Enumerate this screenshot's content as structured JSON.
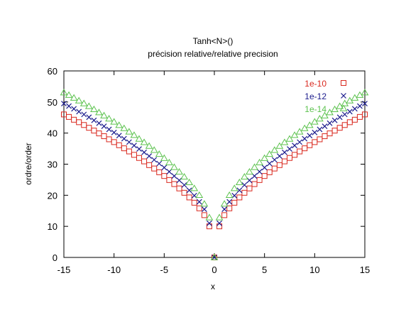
{
  "chart_data": {
    "type": "scatter",
    "title": "Tanh<N>()",
    "subtitle": "précision relative/relative precision",
    "xlabel": "x",
    "ylabel": "ordre/order",
    "xlim": [
      -15,
      15
    ],
    "ylim": [
      0,
      60
    ],
    "xticks": [
      -15,
      -10,
      -5,
      0,
      5,
      10,
      15
    ],
    "yticks": [
      0,
      10,
      20,
      30,
      40,
      50,
      60
    ],
    "grid": false,
    "legend_position": "top-right",
    "series": [
      {
        "name": "1e-10",
        "marker": "square",
        "color": "#d9281e",
        "points": [
          [
            -15,
            46
          ],
          [
            -14.5,
            45.2
          ],
          [
            -14,
            44.3
          ],
          [
            -13.5,
            43.5
          ],
          [
            -13,
            42.6
          ],
          [
            -12.5,
            41.7
          ],
          [
            -12,
            40.8
          ],
          [
            -11.5,
            39.9
          ],
          [
            -11,
            39
          ],
          [
            -10.5,
            38
          ],
          [
            -10,
            37.1
          ],
          [
            -9.5,
            36.1
          ],
          [
            -9,
            35.1
          ],
          [
            -8.5,
            34.1
          ],
          [
            -8,
            33
          ],
          [
            -7.5,
            32
          ],
          [
            -7,
            30.9
          ],
          [
            -6.5,
            29.7
          ],
          [
            -6,
            28.6
          ],
          [
            -5.5,
            27.4
          ],
          [
            -5,
            26.2
          ],
          [
            -4.5,
            24.9
          ],
          [
            -4,
            23.6
          ],
          [
            -3.5,
            22.2
          ],
          [
            -3,
            20.8
          ],
          [
            -2.5,
            19.3
          ],
          [
            -2,
            17.6
          ],
          [
            -1.5,
            15.8
          ],
          [
            -1,
            13.6
          ],
          [
            -0.5,
            10
          ],
          [
            0,
            0
          ],
          [
            0.5,
            10
          ],
          [
            1,
            13.6
          ],
          [
            1.5,
            15.8
          ],
          [
            2,
            17.6
          ],
          [
            2.5,
            19.3
          ],
          [
            3,
            20.8
          ],
          [
            3.5,
            22.2
          ],
          [
            4,
            23.6
          ],
          [
            4.5,
            24.9
          ],
          [
            5,
            26.2
          ],
          [
            5.5,
            27.4
          ],
          [
            6,
            28.6
          ],
          [
            6.5,
            29.7
          ],
          [
            7,
            30.9
          ],
          [
            7.5,
            32
          ],
          [
            8,
            33
          ],
          [
            8.5,
            34.1
          ],
          [
            9,
            35.1
          ],
          [
            9.5,
            36.1
          ],
          [
            10,
            37.1
          ],
          [
            10.5,
            38
          ],
          [
            11,
            39
          ],
          [
            11.5,
            39.9
          ],
          [
            12,
            40.8
          ],
          [
            12.5,
            41.7
          ],
          [
            13,
            42.6
          ],
          [
            13.5,
            43.5
          ],
          [
            14,
            44.3
          ],
          [
            14.5,
            45.2
          ],
          [
            15,
            46
          ]
        ]
      },
      {
        "name": "1e-12",
        "marker": "cross",
        "color": "#1a1a8c",
        "points": [
          [
            -15,
            49.5
          ],
          [
            -14.5,
            48.7
          ],
          [
            -14,
            47.8
          ],
          [
            -13.5,
            46.9
          ],
          [
            -13,
            46
          ],
          [
            -12.5,
            45.1
          ],
          [
            -12,
            44.1
          ],
          [
            -11.5,
            43.2
          ],
          [
            -11,
            42.2
          ],
          [
            -10.5,
            41.2
          ],
          [
            -10,
            40.2
          ],
          [
            -9.5,
            39.2
          ],
          [
            -9,
            38.2
          ],
          [
            -8.5,
            37.1
          ],
          [
            -8,
            36
          ],
          [
            -7.5,
            34.9
          ],
          [
            -7,
            33.8
          ],
          [
            -6.5,
            32.6
          ],
          [
            -6,
            31.4
          ],
          [
            -5.5,
            30.2
          ],
          [
            -5,
            28.9
          ],
          [
            -4.5,
            27.6
          ],
          [
            -4,
            26.2
          ],
          [
            -3.5,
            24.8
          ],
          [
            -3,
            23.3
          ],
          [
            -2.5,
            21.6
          ],
          [
            -2,
            19.9
          ],
          [
            -1.5,
            17.9
          ],
          [
            -1,
            15.5
          ],
          [
            -0.5,
            11
          ],
          [
            0,
            0
          ],
          [
            0.5,
            11
          ],
          [
            1,
            15.5
          ],
          [
            1.5,
            17.9
          ],
          [
            2,
            19.9
          ],
          [
            2.5,
            21.6
          ],
          [
            3,
            23.3
          ],
          [
            3.5,
            24.8
          ],
          [
            4,
            26.2
          ],
          [
            4.5,
            27.6
          ],
          [
            5,
            28.9
          ],
          [
            5.5,
            30.2
          ],
          [
            6,
            31.4
          ],
          [
            6.5,
            32.6
          ],
          [
            7,
            33.8
          ],
          [
            7.5,
            34.9
          ],
          [
            8,
            36
          ],
          [
            8.5,
            37.1
          ],
          [
            9,
            38.2
          ],
          [
            9.5,
            39.2
          ],
          [
            10,
            40.2
          ],
          [
            10.5,
            41.2
          ],
          [
            11,
            42.2
          ],
          [
            11.5,
            43.2
          ],
          [
            12,
            44.1
          ],
          [
            12.5,
            45.1
          ],
          [
            13,
            46
          ],
          [
            13.5,
            46.9
          ],
          [
            14,
            47.8
          ],
          [
            14.5,
            48.7
          ],
          [
            15,
            49.5
          ]
        ]
      },
      {
        "name": "1e-14",
        "marker": "triangle",
        "color": "#5cc24e",
        "points": [
          [
            -15,
            53
          ],
          [
            -14.5,
            52.2
          ],
          [
            -14,
            51.3
          ],
          [
            -13.5,
            50.4
          ],
          [
            -13,
            49.5
          ],
          [
            -12.5,
            48.6
          ],
          [
            -12,
            47.6
          ],
          [
            -11.5,
            46.6
          ],
          [
            -11,
            45.6
          ],
          [
            -10.5,
            44.6
          ],
          [
            -10,
            43.6
          ],
          [
            -9.5,
            42.5
          ],
          [
            -9,
            41.5
          ],
          [
            -8.5,
            40.4
          ],
          [
            -8,
            39.3
          ],
          [
            -7.5,
            38.1
          ],
          [
            -7,
            37
          ],
          [
            -6.5,
            35.8
          ],
          [
            -6,
            34.5
          ],
          [
            -5.5,
            33.2
          ],
          [
            -5,
            31.9
          ],
          [
            -4.5,
            30.5
          ],
          [
            -4,
            29
          ],
          [
            -3.5,
            27.5
          ],
          [
            -3,
            25.9
          ],
          [
            -2.5,
            24.1
          ],
          [
            -2,
            22.2
          ],
          [
            -1.5,
            20
          ],
          [
            -1,
            17.2
          ],
          [
            -0.5,
            12.8
          ],
          [
            0,
            0
          ],
          [
            0.5,
            12.8
          ],
          [
            1,
            17.2
          ],
          [
            1.5,
            20
          ],
          [
            2,
            22.2
          ],
          [
            2.5,
            24.1
          ],
          [
            3,
            25.9
          ],
          [
            3.5,
            27.5
          ],
          [
            4,
            29
          ],
          [
            4.5,
            30.5
          ],
          [
            5,
            31.9
          ],
          [
            5.5,
            33.2
          ],
          [
            6,
            34.5
          ],
          [
            6.5,
            35.8
          ],
          [
            7,
            37
          ],
          [
            7.5,
            38.1
          ],
          [
            8,
            39.3
          ],
          [
            8.5,
            40.4
          ],
          [
            9,
            41.5
          ],
          [
            9.5,
            42.5
          ],
          [
            10,
            43.6
          ],
          [
            10.5,
            44.6
          ],
          [
            11,
            45.6
          ],
          [
            11.5,
            46.6
          ],
          [
            12,
            47.6
          ],
          [
            12.5,
            48.6
          ],
          [
            13,
            49.5
          ],
          [
            13.5,
            50.4
          ],
          [
            14,
            51.3
          ],
          [
            14.5,
            52.2
          ],
          [
            15,
            53
          ]
        ]
      }
    ]
  }
}
